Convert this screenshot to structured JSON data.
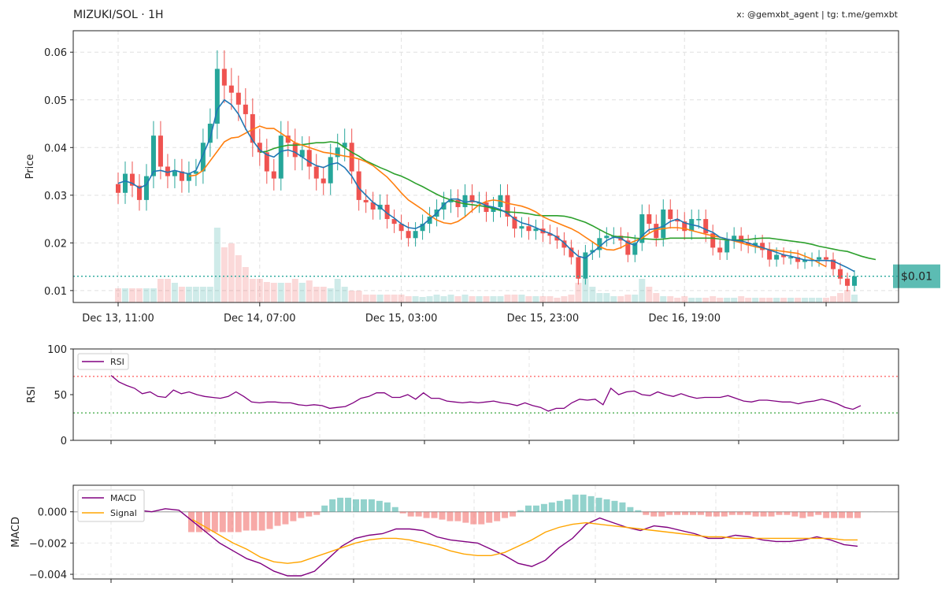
{
  "header": {
    "title": "MIZUKI/SOL · 1H",
    "credits": "x: @gemxbt_agent | tg: t.me/gemxbt"
  },
  "colors": {
    "up": "#26a69a",
    "down": "#ef5350",
    "ma_fast": "#1f77b4",
    "ma_mid": "#ff7f0e",
    "ma_slow": "#2ca02c",
    "price_line": "#26a69a",
    "rsi": "#800080",
    "macd": "#800080",
    "signal": "#ffa500",
    "overbought": "#ff6b6b",
    "oversold": "#4caf50"
  },
  "chart_data": [
    {
      "type": "candlestick",
      "ylabel": "Price",
      "ylim": [
        0.0075,
        0.0645
      ],
      "yticks": [
        "0.01",
        "0.02",
        "0.03",
        "0.04",
        "0.05",
        "0.06"
      ],
      "xtick_labels": [
        "Dec 13, 11:00",
        "Dec 14, 07:00",
        "Dec 15, 03:00",
        "Dec 15, 23:00",
        "Dec 16, 19:00"
      ],
      "current_price_label": "$0.01",
      "current_price": 0.013,
      "grid": true,
      "close": [
        0.0305,
        0.0345,
        0.032,
        0.029,
        0.034,
        0.0425,
        0.036,
        0.034,
        0.035,
        0.033,
        0.0345,
        0.035,
        0.041,
        0.045,
        0.0565,
        0.053,
        0.0515,
        0.049,
        0.047,
        0.041,
        0.039,
        0.035,
        0.0335,
        0.0425,
        0.041,
        0.038,
        0.0395,
        0.036,
        0.0335,
        0.0325,
        0.038,
        0.04,
        0.041,
        0.035,
        0.029,
        0.0285,
        0.027,
        0.028,
        0.025,
        0.024,
        0.0225,
        0.021,
        0.0225,
        0.024,
        0.0255,
        0.027,
        0.0285,
        0.029,
        0.0275,
        0.03,
        0.0285,
        0.0285,
        0.0265,
        0.0275,
        0.03,
        0.0255,
        0.023,
        0.0235,
        0.0225,
        0.023,
        0.022,
        0.0215,
        0.0205,
        0.019,
        0.017,
        0.0125,
        0.018,
        0.0185,
        0.021,
        0.0215,
        0.0215,
        0.0205,
        0.0175,
        0.02,
        0.026,
        0.024,
        0.021,
        0.027,
        0.025,
        0.0245,
        0.0225,
        0.025,
        0.025,
        0.022,
        0.019,
        0.018,
        0.0205,
        0.0215,
        0.02,
        0.0195,
        0.02,
        0.0185,
        0.0165,
        0.0175,
        0.017,
        0.017,
        0.016,
        0.0165,
        0.0165,
        0.017,
        0.0165,
        0.0145,
        0.0125,
        0.011,
        0.013
      ],
      "ma_fast": [
        0.0325,
        0.033,
        0.0325,
        0.0315,
        0.0322,
        0.035,
        0.0352,
        0.0348,
        0.0352,
        0.0348,
        0.0345,
        0.0352,
        0.0385,
        0.042,
        0.048,
        0.05,
        0.049,
        0.047,
        0.044,
        0.0415,
        0.0395,
        0.0385,
        0.038,
        0.0392,
        0.0395,
        0.039,
        0.038,
        0.037,
        0.0362,
        0.0358,
        0.0365,
        0.0368,
        0.0358,
        0.034,
        0.0315,
        0.03,
        0.0285,
        0.0275,
        0.0262,
        0.0252,
        0.024,
        0.0232,
        0.023,
        0.0237,
        0.025,
        0.0262,
        0.028,
        0.0292,
        0.0292,
        0.0285,
        0.0288,
        0.0285,
        0.0278,
        0.0275,
        0.027,
        0.0262,
        0.025,
        0.0242,
        0.0238,
        0.0232,
        0.0225,
        0.022,
        0.0212,
        0.02,
        0.0185,
        0.0172,
        0.0168,
        0.018,
        0.0192,
        0.0205,
        0.0212,
        0.021,
        0.02,
        0.0195,
        0.0215,
        0.0228,
        0.023,
        0.0235,
        0.0245,
        0.025,
        0.0242,
        0.0238,
        0.0235,
        0.0228,
        0.0222,
        0.0212,
        0.0208,
        0.0205,
        0.0204,
        0.02,
        0.0195,
        0.019,
        0.0185,
        0.018,
        0.0175,
        0.0172,
        0.0168,
        0.0164,
        0.0163,
        0.0163,
        0.0163,
        0.0162,
        0.0155,
        0.0148,
        0.014
      ],
      "ma_mid_start": 10,
      "ma_mid": [
        0.034,
        0.0342,
        0.0352,
        0.0372,
        0.0392,
        0.0412,
        0.042,
        0.0422,
        0.043,
        0.0438,
        0.0445,
        0.044,
        0.044,
        0.043,
        0.042,
        0.041,
        0.0405,
        0.04,
        0.0395,
        0.039,
        0.0388,
        0.0385,
        0.0382,
        0.038,
        0.0376,
        0.037,
        0.0362,
        0.035,
        0.0338,
        0.0322,
        0.0305,
        0.029,
        0.028,
        0.027,
        0.0258,
        0.0248,
        0.0242,
        0.024,
        0.0245,
        0.0255,
        0.0268,
        0.028,
        0.0287,
        0.029,
        0.0288,
        0.0283,
        0.028,
        0.0277,
        0.0272,
        0.0265,
        0.0255,
        0.0248,
        0.0242,
        0.0236,
        0.023,
        0.0222,
        0.0212,
        0.0202,
        0.0192,
        0.0186,
        0.0185,
        0.019,
        0.0198,
        0.0204,
        0.021,
        0.022,
        0.0228,
        0.023,
        0.0232,
        0.0232,
        0.023,
        0.0226,
        0.0222,
        0.0218,
        0.0215,
        0.0212,
        0.0208,
        0.0204,
        0.02,
        0.0196,
        0.0192,
        0.0189,
        0.0186,
        0.0184,
        0.0182,
        0.018,
        0.0178,
        0.0172,
        0.0166,
        0.0158,
        0.015
      ],
      "ma_slow_start": 20,
      "ma_slow": [
        0.039,
        0.0392,
        0.0398,
        0.0402,
        0.0405,
        0.0405,
        0.0406,
        0.0408,
        0.041,
        0.041,
        0.0412,
        0.041,
        0.04,
        0.039,
        0.0382,
        0.0372,
        0.0365,
        0.0358,
        0.0352,
        0.0345,
        0.034,
        0.0333,
        0.0325,
        0.0318,
        0.031,
        0.0302,
        0.0295,
        0.029,
        0.0285,
        0.0282,
        0.028,
        0.0278,
        0.0276,
        0.0272,
        0.0268,
        0.0265,
        0.0264,
        0.0263,
        0.0261,
        0.0258,
        0.0257,
        0.0257,
        0.0257,
        0.0256,
        0.0253,
        0.0248,
        0.0243,
        0.0236,
        0.0228,
        0.022,
        0.0214,
        0.0213,
        0.0212,
        0.021,
        0.0209,
        0.0208,
        0.0207,
        0.0208,
        0.021,
        0.021,
        0.021,
        0.021,
        0.021,
        0.021,
        0.021,
        0.0208,
        0.0206,
        0.0206,
        0.0206,
        0.0207,
        0.0209,
        0.021,
        0.021,
        0.0208,
        0.0206,
        0.0204,
        0.0202,
        0.02,
        0.0197,
        0.0193,
        0.019,
        0.0187,
        0.0184,
        0.0182,
        0.0177,
        0.0172,
        0.0168,
        0.0165
      ]
    },
    {
      "type": "line",
      "ylabel": "RSI",
      "ylim": [
        0,
        100
      ],
      "yticks": [
        "0",
        "50",
        "100"
      ],
      "legend": [
        "RSI"
      ],
      "overbought": 70,
      "oversold": 30,
      "values": [
        71,
        64,
        60,
        57,
        51,
        53,
        48,
        47,
        55,
        51,
        53,
        50,
        48,
        47,
        46,
        48,
        53,
        48,
        42,
        41,
        42,
        42,
        41,
        41,
        39,
        38,
        39,
        38,
        35,
        36,
        37,
        41,
        46,
        48,
        52,
        52,
        47,
        47,
        50,
        45,
        52,
        46,
        46,
        43,
        42,
        41,
        42,
        41,
        42,
        43,
        41,
        40,
        38,
        41,
        38,
        36,
        32,
        35,
        35,
        41,
        45,
        44,
        45,
        39,
        57,
        50,
        53,
        54,
        50,
        49,
        53,
        50,
        48,
        51,
        48,
        46,
        47,
        47,
        47,
        49,
        46,
        43,
        42,
        44,
        44,
        43,
        42,
        42,
        40,
        42,
        43,
        45,
        43,
        40,
        36,
        34,
        38
      ]
    },
    {
      "type": "line+bar",
      "ylabel": "MACD",
      "ylim": [
        -0.0043,
        0.0017
      ],
      "yticks": [
        "0.000",
        "−0.002",
        "−0.004"
      ],
      "legend": [
        "MACD",
        "Signal"
      ],
      "macd": [
        0.0,
        0.0,
        0.0001,
        0.0,
        0.0002,
        0.0001,
        -0.0006,
        -0.0013,
        -0.002,
        -0.0025,
        -0.003,
        -0.0033,
        -0.0038,
        -0.0041,
        -0.0041,
        -0.0038,
        -0.003,
        -0.0022,
        -0.0017,
        -0.0015,
        -0.0014,
        -0.0011,
        -0.0011,
        -0.0012,
        -0.0016,
        -0.0018,
        -0.0019,
        -0.002,
        -0.0024,
        -0.0028,
        -0.0033,
        -0.0035,
        -0.0031,
        -0.0023,
        -0.0017,
        -0.0008,
        -0.0004,
        -0.0007,
        -0.001,
        -0.0012,
        -0.0009,
        -0.001,
        -0.0012,
        -0.0014,
        -0.0017,
        -0.0017,
        -0.0015,
        -0.0016,
        -0.0018,
        -0.0019,
        -0.0019,
        -0.0018,
        -0.0016,
        -0.0018,
        -0.0021,
        -0.0022
      ],
      "signal_start": 6,
      "signal": [
        -0.0005,
        -0.001,
        -0.0015,
        -0.002,
        -0.0024,
        -0.0029,
        -0.0032,
        -0.0033,
        -0.0032,
        -0.0029,
        -0.0026,
        -0.0023,
        -0.002,
        -0.0018,
        -0.0017,
        -0.0017,
        -0.0018,
        -0.002,
        -0.0022,
        -0.0025,
        -0.0027,
        -0.0028,
        -0.0028,
        -0.0026,
        -0.0022,
        -0.0018,
        -0.0013,
        -0.001,
        -0.0008,
        -0.0007,
        -0.0008,
        -0.0009,
        -0.001,
        -0.0011,
        -0.0012,
        -0.0013,
        -0.0014,
        -0.0015,
        -0.0016,
        -0.0016,
        -0.0017,
        -0.0017,
        -0.0017,
        -0.0017,
        -0.0017,
        -0.0017,
        -0.0017,
        -0.0017,
        -0.0018,
        -0.0018
      ],
      "histogram_start": 10,
      "histogram": [
        -0.0013,
        -0.0013,
        -0.0013,
        -0.0013,
        -0.0013,
        -0.0013,
        -0.0013,
        -0.0012,
        -0.0012,
        -0.0012,
        -0.0011,
        -0.0009,
        -0.0008,
        -0.0006,
        -0.0004,
        -0.0003,
        -0.0002,
        0.0004,
        0.0008,
        0.0009,
        0.0009,
        0.0008,
        0.0008,
        0.0008,
        0.0007,
        0.0006,
        0.0003,
        -0.0001,
        -0.0003,
        -0.0003,
        -0.0004,
        -0.0004,
        -0.0005,
        -0.0006,
        -0.0006,
        -0.0007,
        -0.0008,
        -0.0008,
        -0.0007,
        -0.0006,
        -0.0004,
        -0.0003,
        0.0001,
        0.0004,
        0.0004,
        0.0005,
        0.0006,
        0.0007,
        0.0008,
        0.0011,
        0.0011,
        0.001,
        0.0009,
        0.0008,
        0.0007,
        0.0006,
        0.0003,
        0.0001,
        -0.0002,
        -0.0003,
        -0.0003,
        -0.0002,
        -0.0002,
        -0.0002,
        -0.0002,
        -0.0002,
        -0.0003,
        -0.0003,
        -0.0003,
        -0.0002,
        -0.0002,
        -0.0002,
        -0.0003,
        -0.0003,
        -0.0003,
        -0.0002,
        -0.0002,
        -0.0003,
        -0.0004,
        -0.0003,
        -0.0002,
        -0.0004,
        -0.0004,
        -0.0004,
        -0.0004,
        -0.0004
      ]
    }
  ]
}
